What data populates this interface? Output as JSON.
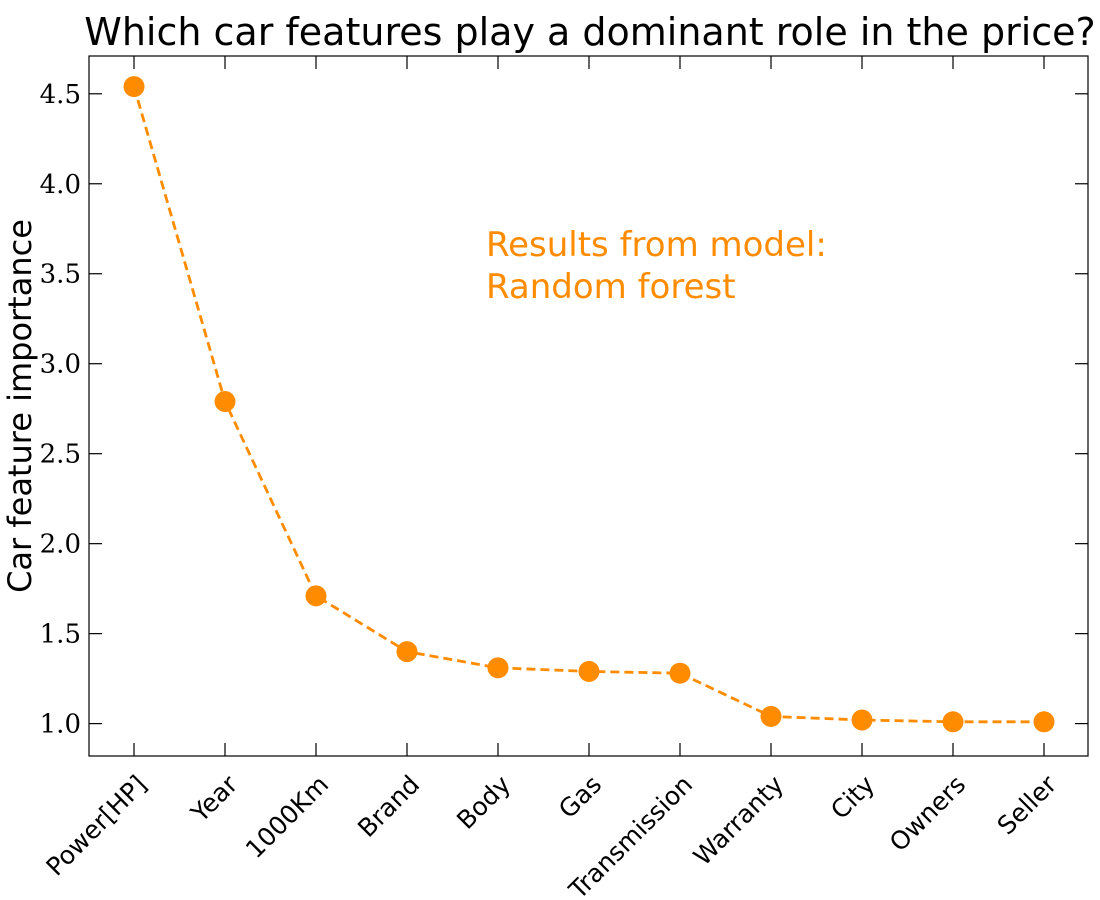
{
  "chart_data": {
    "type": "line",
    "title": "Which car features play a dominant role in the price?",
    "xlabel": "",
    "ylabel": "Car feature importance",
    "categories": [
      "Power[HP]",
      "Year",
      "1000Km",
      "Brand",
      "Body",
      "Gas",
      "Transmission",
      "Warranty",
      "City",
      "Owners",
      "Seller"
    ],
    "series": [
      {
        "values": [
          4.54,
          2.79,
          1.71,
          1.4,
          1.31,
          1.29,
          1.28,
          1.04,
          1.02,
          1.01,
          1.01
        ],
        "color": "#ff8c00",
        "line_style": "dashed",
        "marker": "circle"
      }
    ],
    "ylim": [
      0.82,
      4.71
    ],
    "yticks": [
      "1.0",
      "1.5",
      "2.0",
      "2.5",
      "3.0",
      "3.5",
      "4.0",
      "4.5"
    ],
    "grid": false,
    "legend": "none",
    "annotation": {
      "lines": [
        "Results from model:",
        "Random forest"
      ],
      "color": "#ff8c00"
    }
  }
}
